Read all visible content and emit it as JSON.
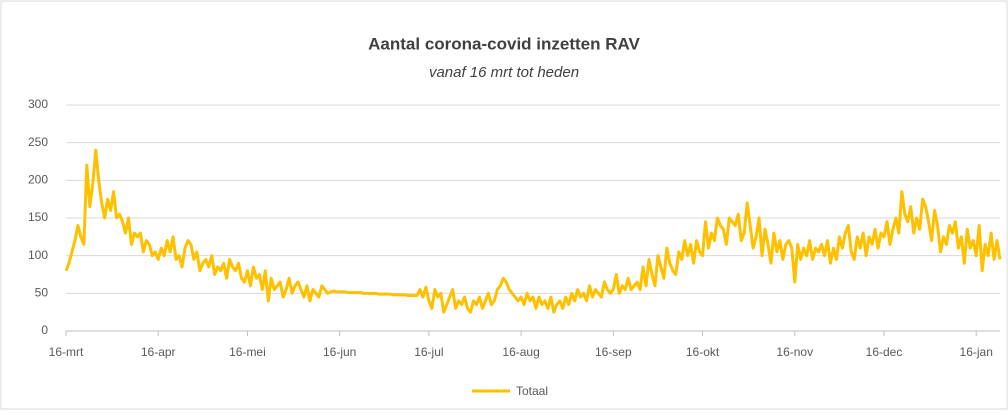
{
  "chart_data": {
    "type": "line",
    "title": "Aantal corona-covid inzetten RAV",
    "subtitle": "vanaf 16 mrt  tot heden",
    "categories": [
      "16-mrt",
      null,
      null,
      null,
      null,
      null,
      null,
      null,
      null,
      null,
      null,
      null,
      null,
      null,
      null,
      null,
      null,
      null,
      null,
      null,
      null,
      null,
      null,
      null,
      null,
      null,
      null,
      null,
      null,
      null,
      null,
      "16-apr",
      null,
      null,
      null,
      null,
      null,
      null,
      null,
      null,
      null,
      null,
      null,
      null,
      null,
      null,
      null,
      null,
      null,
      null,
      null,
      null,
      null,
      null,
      null,
      null,
      null,
      null,
      null,
      null,
      null,
      "16-mei",
      null,
      null,
      null,
      null,
      null,
      null,
      null,
      null,
      null,
      null,
      null,
      null,
      null,
      null,
      null,
      null,
      null,
      null,
      null,
      null,
      null,
      null,
      null,
      null,
      null,
      null,
      null,
      null,
      null,
      null,
      "16-jun",
      null,
      null,
      null,
      null,
      null,
      null,
      null,
      null,
      null,
      null,
      null,
      null,
      null,
      null,
      null,
      null,
      null,
      null,
      null,
      null,
      null,
      null,
      null,
      null,
      null,
      null,
      null,
      null,
      null,
      "16-jul",
      null,
      null,
      null,
      null,
      null,
      null,
      null,
      null,
      null,
      null,
      null,
      null,
      null,
      null,
      null,
      null,
      null,
      null,
      null,
      null,
      null,
      null,
      null,
      null,
      null,
      null,
      null,
      null,
      null,
      null,
      "16-aug",
      null,
      null,
      null,
      null,
      null,
      null,
      null,
      null,
      null,
      null,
      null,
      null,
      null,
      null,
      null,
      null,
      null,
      null,
      null,
      null,
      null,
      null,
      null,
      null,
      null,
      null,
      null,
      null,
      null,
      null,
      "16-sep",
      null,
      null,
      null,
      null,
      null,
      null,
      null,
      null,
      null,
      null,
      null,
      null,
      null,
      null,
      null,
      null,
      null,
      null,
      null,
      null,
      null,
      null,
      null,
      null,
      null,
      null,
      null,
      null,
      null,
      "16-okt",
      null,
      null,
      null,
      null,
      null,
      null,
      null,
      null,
      null,
      null,
      null,
      null,
      null,
      null,
      null,
      null,
      null,
      null,
      null,
      null,
      null,
      null,
      null,
      null,
      null,
      null,
      null,
      null,
      null,
      null,
      "16-nov",
      null,
      null,
      null,
      null,
      null,
      null,
      null,
      null,
      null,
      null,
      null,
      null,
      null,
      null,
      null,
      null,
      null,
      null,
      null,
      null,
      null,
      null,
      null,
      null,
      null,
      null,
      null,
      null,
      null,
      "16-dec",
      null,
      null,
      null,
      null,
      null,
      null,
      null,
      null,
      null,
      null,
      null,
      null,
      null,
      null,
      null,
      null,
      null,
      null,
      null,
      null,
      null,
      null,
      null,
      null,
      null,
      null,
      null,
      null,
      null,
      null,
      "16-jan",
      null,
      null,
      null,
      null,
      null,
      null,
      null,
      null
    ],
    "series": [
      {
        "name": "Totaal",
        "color": "#ffc000",
        "values": [
          80,
          90,
          105,
          120,
          140,
          125,
          115,
          220,
          165,
          195,
          240,
          200,
          170,
          150,
          175,
          160,
          185,
          150,
          155,
          145,
          130,
          150,
          115,
          130,
          125,
          130,
          105,
          120,
          115,
          100,
          105,
          95,
          110,
          100,
          120,
          105,
          125,
          95,
          100,
          85,
          110,
          120,
          115,
          95,
          105,
          80,
          90,
          95,
          85,
          100,
          75,
          85,
          80,
          90,
          70,
          95,
          85,
          80,
          90,
          70,
          65,
          80,
          60,
          85,
          70,
          75,
          55,
          80,
          40,
          70,
          55,
          60,
          65,
          45,
          55,
          70,
          50,
          60,
          65,
          55,
          45,
          60,
          40,
          55,
          50,
          45,
          60,
          55,
          50,
          52,
          53,
          52,
          52,
          52,
          52,
          51,
          51,
          51,
          51,
          51,
          50,
          50,
          50,
          50,
          50,
          49,
          49,
          49,
          49,
          49,
          48,
          48,
          48,
          48,
          48,
          47,
          47,
          47,
          47,
          55,
          45,
          58,
          40,
          30,
          55,
          45,
          50,
          25,
          35,
          45,
          55,
          30,
          40,
          35,
          45,
          30,
          25,
          40,
          35,
          45,
          30,
          40,
          50,
          35,
          40,
          55,
          60,
          70,
          65,
          55,
          50,
          45,
          40,
          45,
          35,
          50,
          40,
          45,
          30,
          45,
          35,
          40,
          30,
          45,
          25,
          35,
          40,
          30,
          45,
          35,
          50,
          40,
          55,
          45,
          50,
          40,
          60,
          45,
          55,
          50,
          45,
          65,
          55,
          50,
          55,
          75,
          50,
          60,
          55,
          70,
          55,
          60,
          65,
          55,
          85,
          60,
          95,
          75,
          60,
          100,
          85,
          70,
          110,
          90,
          80,
          75,
          105,
          95,
          120,
          100,
          115,
          90,
          120,
          105,
          100,
          145,
          110,
          130,
          120,
          150,
          140,
          135,
          115,
          150,
          145,
          140,
          155,
          120,
          130,
          170,
          140,
          110,
          125,
          150,
          100,
          135,
          115,
          90,
          130,
          105,
          120,
          95,
          115,
          120,
          110,
          65,
          115,
          95,
          110,
          100,
          120,
          95,
          110,
          105,
          115,
          100,
          120,
          90,
          110,
          95,
          125,
          110,
          130,
          140,
          105,
          95,
          125,
          110,
          130,
          100,
          125,
          115,
          135,
          110,
          130,
          125,
          145,
          115,
          135,
          150,
          130,
          185,
          155,
          145,
          165,
          130,
          150,
          135,
          175,
          165,
          145,
          120,
          160,
          140,
          105,
          125,
          115,
          140,
          130,
          145,
          110,
          125,
          90,
          135,
          110,
          120,
          100,
          140,
          80,
          115,
          100,
          130,
          95,
          120,
          95
        ]
      }
    ],
    "ylim": [
      0,
      300
    ],
    "yticks": [
      0,
      50,
      100,
      150,
      200,
      250,
      300
    ],
    "grid": true,
    "legend": "bottom"
  }
}
